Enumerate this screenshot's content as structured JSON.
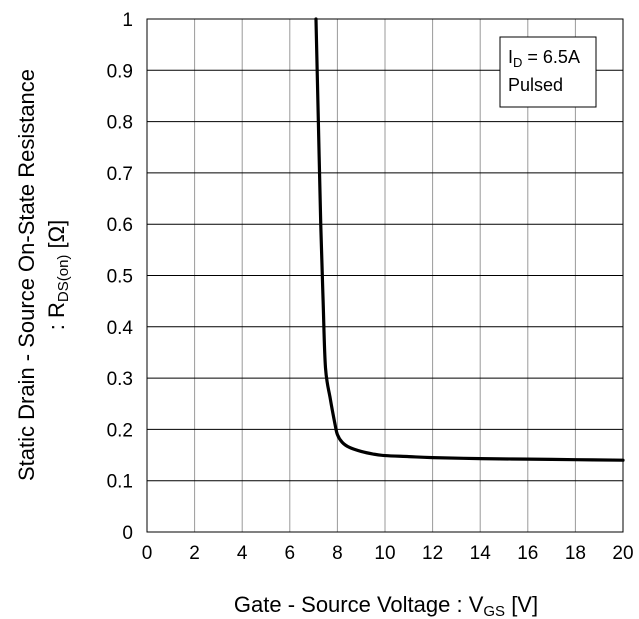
{
  "chart_data": {
    "type": "line",
    "xlabel": "Gate - Source Voltage : V",
    "xlabel_sub": "GS",
    "xlabel_unit": " [V]",
    "ylabel_line1": "Static Drain - Source On-State Resistance",
    "ylabel_line2_prefix": ": R",
    "ylabel_line2_sub": "DS(on)",
    "ylabel_line2_unit": " [Ω]",
    "xlim": [
      0,
      20
    ],
    "ylim": [
      0,
      1
    ],
    "x_ticks": [
      "0",
      "2",
      "4",
      "6",
      "8",
      "10",
      "12",
      "14",
      "16",
      "18",
      "20"
    ],
    "y_ticks": [
      "0",
      "0.1",
      "0.2",
      "0.3",
      "0.4",
      "0.5",
      "0.6",
      "0.7",
      "0.8",
      "0.9",
      "1"
    ],
    "grid": true,
    "annotation": {
      "line1_prefix": "I",
      "line1_sub": "D",
      "line1_value": " = 6.5A",
      "line2": "Pulsed"
    },
    "series": [
      {
        "x": [
          7.1,
          7.2,
          7.3,
          7.4,
          7.5,
          7.7,
          7.9,
          8.0,
          8.2,
          8.5,
          9.0,
          9.5,
          10.0,
          11.0,
          12.0,
          14.0,
          16.0,
          18.0,
          20.0
        ],
        "y": [
          1.0,
          0.8,
          0.6,
          0.45,
          0.32,
          0.26,
          0.21,
          0.19,
          0.175,
          0.165,
          0.157,
          0.152,
          0.149,
          0.147,
          0.145,
          0.143,
          0.142,
          0.141,
          0.14
        ]
      }
    ]
  }
}
